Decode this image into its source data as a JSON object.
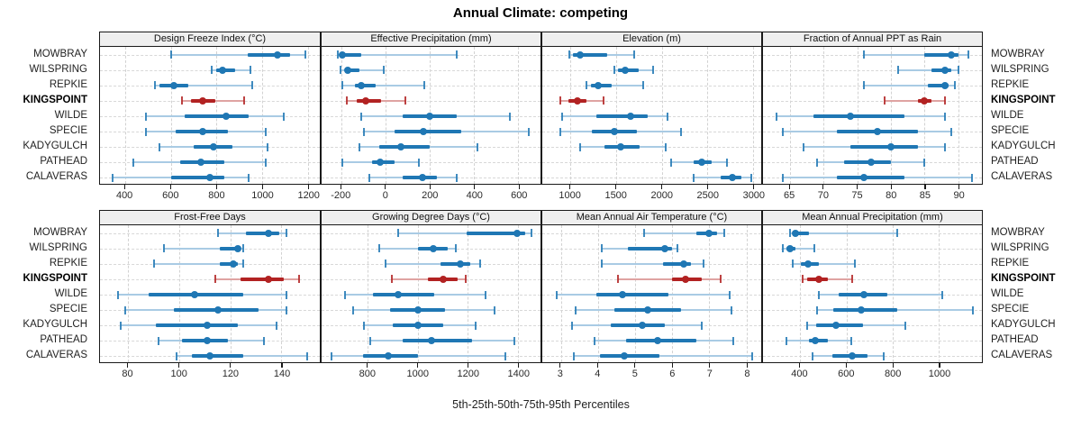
{
  "title": "Annual Climate: competing",
  "caption": "5th-25th-50th-75th-95th Percentiles",
  "percentile_labels": [
    "5th",
    "25th",
    "50th",
    "75th",
    "95th"
  ],
  "stations": [
    "MOWBRAY",
    "WILSPRING",
    "REPKIE",
    "KINGSPOINT",
    "WILDE",
    "SPECIE",
    "KADYGULCH",
    "PATHEAD",
    "CALAVERAS"
  ],
  "highlight_station": "KINGSPOINT",
  "highlight_index": 3,
  "colors": {
    "normal": "#1f77b4",
    "normal_light": "#a9cbe4",
    "highlight": "#b22222",
    "highlight_light": "#dfa3a2",
    "grid": "#d4d4d4",
    "strip_bg": "#efefef",
    "border": "#1a1a1a",
    "text": "#222222"
  },
  "chart_data": [
    {
      "type": "scatter",
      "subtype": "percentile-intervals",
      "panel_title": "Design Freeze Index (°C)",
      "xlim": [
        290,
        1252
      ],
      "xticks": [
        400,
        600,
        800,
        1000,
        1200
      ],
      "values": [
        [
          600,
          935,
          1065,
          1120,
          1190
        ],
        [
          780,
          800,
          825,
          880,
          950
        ],
        [
          530,
          550,
          615,
          675,
          955
        ],
        [
          648,
          690,
          740,
          795,
          920
        ],
        [
          490,
          660,
          840,
          940,
          1095
        ],
        [
          490,
          620,
          740,
          850,
          1015
        ],
        [
          550,
          700,
          785,
          870,
          1025
        ],
        [
          435,
          640,
          730,
          835,
          1015
        ],
        [
          345,
          600,
          770,
          835,
          940
        ]
      ]
    },
    {
      "type": "scatter",
      "subtype": "percentile-intervals",
      "panel_title": "Effective Precipitation (mm)",
      "xlim": [
        -290,
        700
      ],
      "xticks": [
        -200,
        0,
        200,
        400,
        600
      ],
      "values": [
        [
          -215,
          -205,
          -195,
          -110,
          320
        ],
        [
          -205,
          -185,
          -170,
          -120,
          -10
        ],
        [
          -195,
          -140,
          -110,
          -45,
          175
        ],
        [
          -175,
          -130,
          -90,
          -20,
          90
        ],
        [
          -110,
          75,
          200,
          320,
          560
        ],
        [
          -100,
          40,
          170,
          340,
          645
        ],
        [
          -120,
          -30,
          70,
          200,
          415
        ],
        [
          -195,
          -60,
          -25,
          40,
          150
        ],
        [
          -75,
          75,
          165,
          230,
          320
        ]
      ]
    },
    {
      "type": "scatter",
      "subtype": "percentile-intervals",
      "panel_title": "Elevation (m)",
      "xlim": [
        690,
        3090
      ],
      "xticks": [
        1000,
        1500,
        2000,
        2500,
        3000
      ],
      "values": [
        [
          990,
          1030,
          1100,
          1400,
          1700
        ],
        [
          1480,
          1520,
          1600,
          1750,
          1900
        ],
        [
          1170,
          1220,
          1300,
          1450,
          1800
        ],
        [
          890,
          980,
          1075,
          1170,
          1360
        ],
        [
          910,
          1280,
          1660,
          1850,
          2060
        ],
        [
          890,
          1230,
          1480,
          1730,
          2210
        ],
        [
          1100,
          1370,
          1550,
          1760,
          2040
        ],
        [
          2100,
          2350,
          2440,
          2550,
          2710
        ],
        [
          2350,
          2650,
          2770,
          2870,
          2980
        ]
      ]
    },
    {
      "type": "scatter",
      "subtype": "percentile-intervals",
      "panel_title": "Fraction of Annual PPT as Rain",
      "xlim": [
        61,
        93.5
      ],
      "xticks": [
        65,
        70,
        75,
        80,
        85,
        90
      ],
      "values": [
        [
          76,
          85,
          89,
          90,
          91.5
        ],
        [
          81,
          86,
          88,
          89,
          90
        ],
        [
          76,
          85.5,
          88,
          88.5,
          89.5
        ],
        [
          79,
          84,
          85,
          86,
          88
        ],
        [
          63,
          68.5,
          74,
          82,
          88
        ],
        [
          64,
          72,
          78,
          84,
          89
        ],
        [
          67,
          74,
          80,
          84,
          88
        ],
        [
          69,
          73,
          77,
          80,
          85
        ],
        [
          64,
          72,
          76,
          82,
          92
        ]
      ]
    },
    {
      "type": "scatter",
      "subtype": "percentile-intervals",
      "panel_title": "Frost-Free Days",
      "xlim": [
        69,
        155
      ],
      "xticks": [
        80,
        100,
        120,
        140
      ],
      "values": [
        [
          115,
          126,
          135,
          139,
          142
        ],
        [
          94,
          116,
          123,
          124,
          125
        ],
        [
          90,
          116,
          121,
          123,
          125
        ],
        [
          114,
          124,
          135,
          141,
          147
        ],
        [
          76,
          88,
          106,
          125,
          142
        ],
        [
          79,
          98,
          115,
          131,
          142
        ],
        [
          77,
          91,
          111,
          123,
          138
        ],
        [
          92,
          101,
          111,
          119,
          133
        ],
        [
          99,
          105,
          112,
          125,
          150
        ]
      ]
    },
    {
      "type": "scatter",
      "subtype": "percentile-intervals",
      "panel_title": "Growing Degree Days (°C)",
      "xlim": [
        615,
        1490
      ],
      "xticks": [
        800,
        1000,
        1200,
        1400
      ],
      "values": [
        [
          920,
          1195,
          1395,
          1430,
          1455
        ],
        [
          845,
          1000,
          1060,
          1120,
          1150
        ],
        [
          870,
          1090,
          1170,
          1210,
          1250
        ],
        [
          895,
          1040,
          1100,
          1160,
          1190
        ],
        [
          710,
          820,
          920,
          1065,
          1270
        ],
        [
          740,
          890,
          1000,
          1110,
          1305
        ],
        [
          785,
          900,
          1000,
          1100,
          1230
        ],
        [
          810,
          940,
          1055,
          1215,
          1385
        ],
        [
          655,
          780,
          880,
          1000,
          1350
        ]
      ]
    },
    {
      "type": "scatter",
      "subtype": "percentile-intervals",
      "panel_title": "Mean Annual Air Temperature (°C)",
      "xlim": [
        2.5,
        8.4
      ],
      "xticks": [
        3,
        4,
        5,
        6,
        7,
        8
      ],
      "values": [
        [
          5.25,
          6.65,
          7.0,
          7.2,
          7.4
        ],
        [
          4.1,
          4.8,
          5.8,
          6.0,
          6.15
        ],
        [
          4.1,
          5.75,
          6.3,
          6.5,
          6.85
        ],
        [
          4.55,
          6.0,
          6.35,
          6.8,
          7.3
        ],
        [
          2.9,
          3.95,
          4.65,
          5.9,
          7.55
        ],
        [
          3.4,
          4.45,
          5.35,
          6.25,
          7.6
        ],
        [
          3.3,
          4.35,
          5.2,
          5.8,
          6.8
        ],
        [
          3.9,
          4.75,
          5.6,
          6.65,
          7.65
        ],
        [
          3.35,
          4.05,
          4.7,
          5.65,
          8.15
        ]
      ]
    },
    {
      "type": "scatter",
      "subtype": "percentile-intervals",
      "panel_title": "Mean Annual Precipitation (mm)",
      "xlim": [
        240,
        1185
      ],
      "xticks": [
        400,
        600,
        800,
        1000
      ],
      "values": [
        [
          355,
          370,
          380,
          440,
          820
        ],
        [
          325,
          340,
          355,
          380,
          460
        ],
        [
          370,
          405,
          435,
          480,
          635
        ],
        [
          410,
          430,
          480,
          520,
          625
        ],
        [
          480,
          565,
          675,
          775,
          1015
        ],
        [
          475,
          545,
          665,
          820,
          1145
        ],
        [
          430,
          470,
          555,
          670,
          855
        ],
        [
          340,
          440,
          465,
          520,
          620
        ],
        [
          455,
          540,
          625,
          690,
          760
        ]
      ]
    }
  ]
}
